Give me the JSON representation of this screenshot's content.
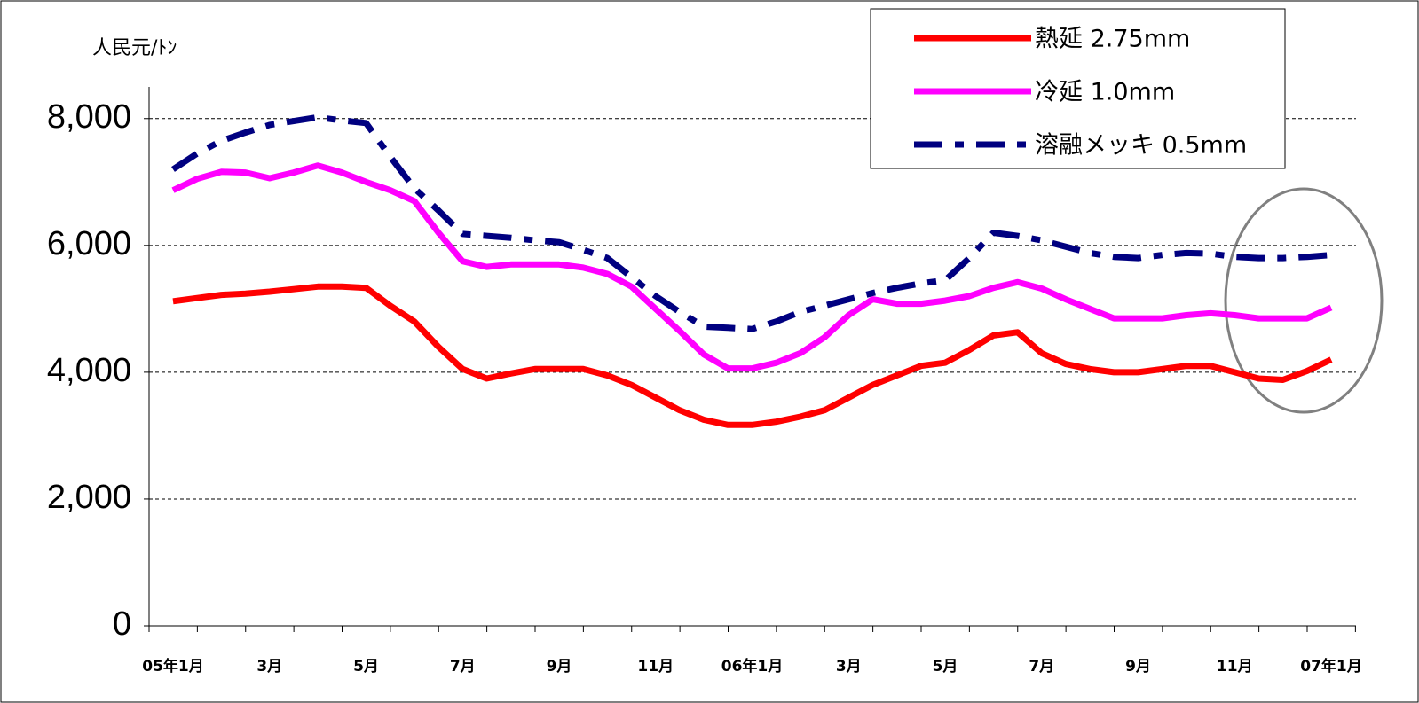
{
  "chart_data": {
    "type": "line",
    "y_label": "人民元/ﾄﾝ",
    "categories": [
      "05年1月",
      null,
      null,
      null,
      "3月",
      null,
      null,
      null,
      "5月",
      null,
      null,
      null,
      "7月",
      null,
      null,
      null,
      "9月",
      null,
      null,
      null,
      "11月",
      null,
      null,
      null,
      "06年1月",
      null,
      null,
      null,
      "3月",
      null,
      null,
      null,
      "5月",
      null,
      null,
      null,
      "7月",
      null,
      null,
      null,
      "9月",
      null,
      null,
      null,
      "11月",
      null,
      null,
      null,
      "07年1月"
    ],
    "series": [
      {
        "name": "熱延 2.75mm",
        "color": "#ff0000",
        "style": "solid",
        "values": [
          5120,
          5170,
          5220,
          5240,
          5270,
          5310,
          5350,
          5350,
          5330,
          5050,
          4800,
          4400,
          4050,
          3900,
          3980,
          4050,
          4050,
          4050,
          3950,
          3800,
          3600,
          3400,
          3250,
          3170,
          3170,
          3220,
          3300,
          3400,
          3600,
          3800,
          3950,
          4100,
          4150,
          4350,
          4580,
          4630,
          4300,
          4130,
          4050,
          4000,
          4000,
          4050,
          4100,
          4100,
          4000,
          3900,
          3880,
          4020,
          4200
        ]
      },
      {
        "name": "冷延 1.0mm",
        "color": "#ff00ff",
        "style": "solid",
        "values": [
          6870,
          7050,
          7160,
          7150,
          7060,
          7150,
          7260,
          7150,
          7000,
          6870,
          6700,
          6200,
          5750,
          5660,
          5700,
          5700,
          5700,
          5650,
          5550,
          5350,
          5000,
          4650,
          4280,
          4060,
          4060,
          4150,
          4300,
          4550,
          4900,
          5150,
          5080,
          5080,
          5130,
          5200,
          5330,
          5420,
          5320,
          5150,
          5000,
          4850,
          4850,
          4850,
          4900,
          4930,
          4900,
          4850,
          4850,
          4850,
          5020
        ]
      },
      {
        "name": "溶融メッキ 0.5mm",
        "color": "#000080",
        "style": "dashdot",
        "values": [
          7200,
          7450,
          7650,
          7780,
          7900,
          7960,
          8020,
          7970,
          7930,
          7400,
          6900,
          6550,
          6180,
          6150,
          6120,
          6080,
          6050,
          5930,
          5800,
          5500,
          5200,
          4950,
          4720,
          4700,
          4680,
          4800,
          4950,
          5050,
          5150,
          5250,
          5330,
          5400,
          5450,
          5800,
          6200,
          6150,
          6080,
          5980,
          5880,
          5820,
          5800,
          5850,
          5880,
          5870,
          5820,
          5800,
          5800,
          5820,
          5850
        ]
      }
    ],
    "ylim": [
      0,
      8500
    ],
    "yticks": [
      0,
      {
        "value": 2000,
        "label": "2,000"
      },
      {
        "value": 4000,
        "label": "4,000"
      },
      {
        "value": 6000,
        "label": "6,000"
      },
      {
        "value": 8000,
        "label": "8,000"
      }
    ],
    "grid": true,
    "legend": "upper right"
  }
}
